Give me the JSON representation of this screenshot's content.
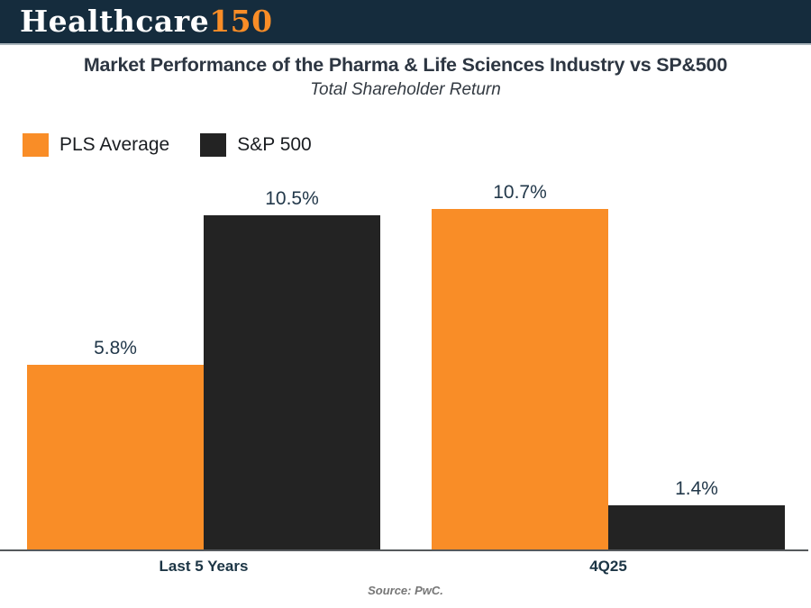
{
  "header": {
    "logo_part1": "Healthcare",
    "logo_part2": "150",
    "bg_color": "#152C3D",
    "border_color": "#A9B5BC"
  },
  "title": "Market Performance of the Pharma & Life Sciences Industry vs SP&500",
  "subtitle": "Total Shareholder Return",
  "legend": [
    {
      "label": "PLS Average",
      "color": "#F98D27"
    },
    {
      "label": "S&P 500",
      "color": "#232323"
    }
  ],
  "source": "Source: PwC.",
  "colors": {
    "accent_orange": "#F98D27",
    "dark_bar": "#232323",
    "title_text": "#2D3642",
    "data_label_text": "#22384A",
    "axis_line": "#55595C",
    "source_text": "#767676"
  },
  "chart_data": {
    "type": "bar",
    "title": "Market Performance of the Pharma & Life Sciences Industry vs SP&500",
    "subtitle": "Total Shareholder Return",
    "categories": [
      "Last 5 Years",
      "4Q25"
    ],
    "series": [
      {
        "name": "PLS Average",
        "color": "#F98D27",
        "values": [
          5.8,
          10.7
        ],
        "labels": [
          "5.8%",
          "10.7%"
        ]
      },
      {
        "name": "S&P 500",
        "color": "#232323",
        "values": [
          10.5,
          1.4
        ],
        "labels": [
          "10.5%",
          "1.4%"
        ]
      }
    ],
    "value_suffix": "%",
    "ylim": [
      0,
      11.9
    ],
    "grid": false,
    "legend_position": "top-left",
    "source": "Source: PwC."
  }
}
